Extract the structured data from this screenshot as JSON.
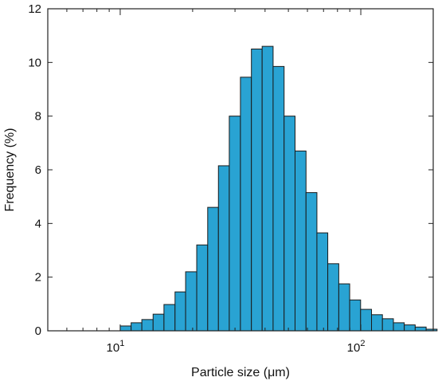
{
  "chart_data": {
    "type": "bar",
    "xscale": "log",
    "xlabel": "Particle size (μm)",
    "ylabel": "Frequency (%)",
    "xlim": [
      5,
      200
    ],
    "ylim": [
      0,
      12
    ],
    "yticks": [
      0,
      2,
      4,
      6,
      8,
      10,
      12
    ],
    "xticks_major": [
      {
        "value": 10,
        "base": "10",
        "exp": "1"
      },
      {
        "value": 100,
        "base": "10",
        "exp": "2"
      }
    ],
    "bar_color": "#29a3d3",
    "bar_edge_color": "#1a1a1a",
    "bins": [
      {
        "left": 10.0,
        "right": 11.1,
        "value": 0.18
      },
      {
        "left": 11.1,
        "right": 12.3,
        "value": 0.3
      },
      {
        "left": 12.3,
        "right": 13.7,
        "value": 0.42
      },
      {
        "left": 13.7,
        "right": 15.2,
        "value": 0.62
      },
      {
        "left": 15.2,
        "right": 16.9,
        "value": 0.98
      },
      {
        "left": 16.9,
        "right": 18.7,
        "value": 1.45
      },
      {
        "left": 18.7,
        "right": 20.8,
        "value": 2.2
      },
      {
        "left": 20.8,
        "right": 23.1,
        "value": 3.2
      },
      {
        "left": 23.1,
        "right": 25.6,
        "value": 4.6
      },
      {
        "left": 25.6,
        "right": 28.4,
        "value": 6.15
      },
      {
        "left": 28.4,
        "right": 31.6,
        "value": 8.0
      },
      {
        "left": 31.6,
        "right": 35.1,
        "value": 9.45
      },
      {
        "left": 35.1,
        "right": 38.9,
        "value": 10.5
      },
      {
        "left": 38.9,
        "right": 43.2,
        "value": 10.6
      },
      {
        "left": 43.2,
        "right": 48.0,
        "value": 9.85
      },
      {
        "left": 48.0,
        "right": 53.3,
        "value": 8.0
      },
      {
        "left": 53.3,
        "right": 59.2,
        "value": 6.7
      },
      {
        "left": 59.2,
        "right": 65.7,
        "value": 5.15
      },
      {
        "left": 65.7,
        "right": 72.9,
        "value": 3.65
      },
      {
        "left": 72.9,
        "right": 81.0,
        "value": 2.5
      },
      {
        "left": 81.0,
        "right": 89.9,
        "value": 1.75
      },
      {
        "left": 89.9,
        "right": 99.8,
        "value": 1.15
      },
      {
        "left": 99.8,
        "right": 110.8,
        "value": 0.8
      },
      {
        "left": 110.8,
        "right": 123.0,
        "value": 0.6
      },
      {
        "left": 123.0,
        "right": 136.6,
        "value": 0.45
      },
      {
        "left": 136.6,
        "right": 151.6,
        "value": 0.3
      },
      {
        "left": 151.6,
        "right": 168.3,
        "value": 0.22
      },
      {
        "left": 168.3,
        "right": 186.9,
        "value": 0.14
      },
      {
        "left": 186.9,
        "right": 207.5,
        "value": 0.06
      }
    ],
    "grid": false,
    "legend": "none"
  }
}
